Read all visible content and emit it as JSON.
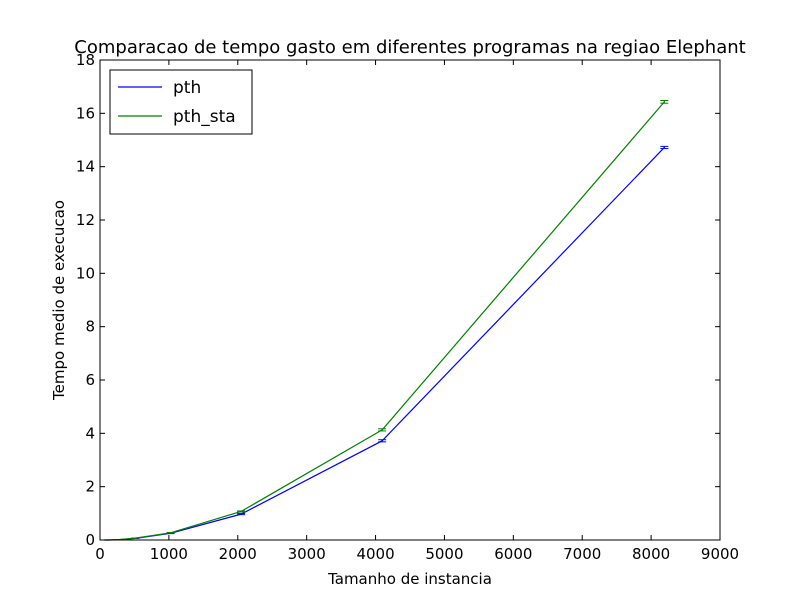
{
  "chart_data": {
    "type": "line",
    "title": "Comparacao de tempo gasto em diferentes programas na regiao Elephant",
    "xlabel": "Tamanho de instancia",
    "ylabel": "Tempo medio de execucao",
    "xlim": [
      0,
      9000
    ],
    "ylim": [
      0,
      18
    ],
    "xticks": [
      0,
      1000,
      2000,
      3000,
      4000,
      5000,
      6000,
      7000,
      8000,
      9000
    ],
    "yticks": [
      0,
      2,
      4,
      6,
      8,
      10,
      12,
      14,
      16,
      18
    ],
    "grid": false,
    "legend_position": "upper-left",
    "x": [
      64,
      128,
      256,
      512,
      1024,
      2048,
      4096,
      8192
    ],
    "series": [
      {
        "name": "pth",
        "color": "#0000ff",
        "values": [
          0.0,
          0.0,
          0.01,
          0.06,
          0.25,
          0.97,
          3.72,
          14.72
        ],
        "errors": [
          0.0,
          0.0,
          0.0,
          0.0,
          0.01,
          0.02,
          0.04,
          0.04
        ]
      },
      {
        "name": "pth_sta",
        "color": "#008000",
        "values": [
          0.0,
          0.0,
          0.01,
          0.07,
          0.27,
          1.07,
          4.13,
          16.43
        ],
        "errors": [
          0.0,
          0.0,
          0.0,
          0.0,
          0.01,
          0.02,
          0.04,
          0.05
        ]
      }
    ]
  }
}
